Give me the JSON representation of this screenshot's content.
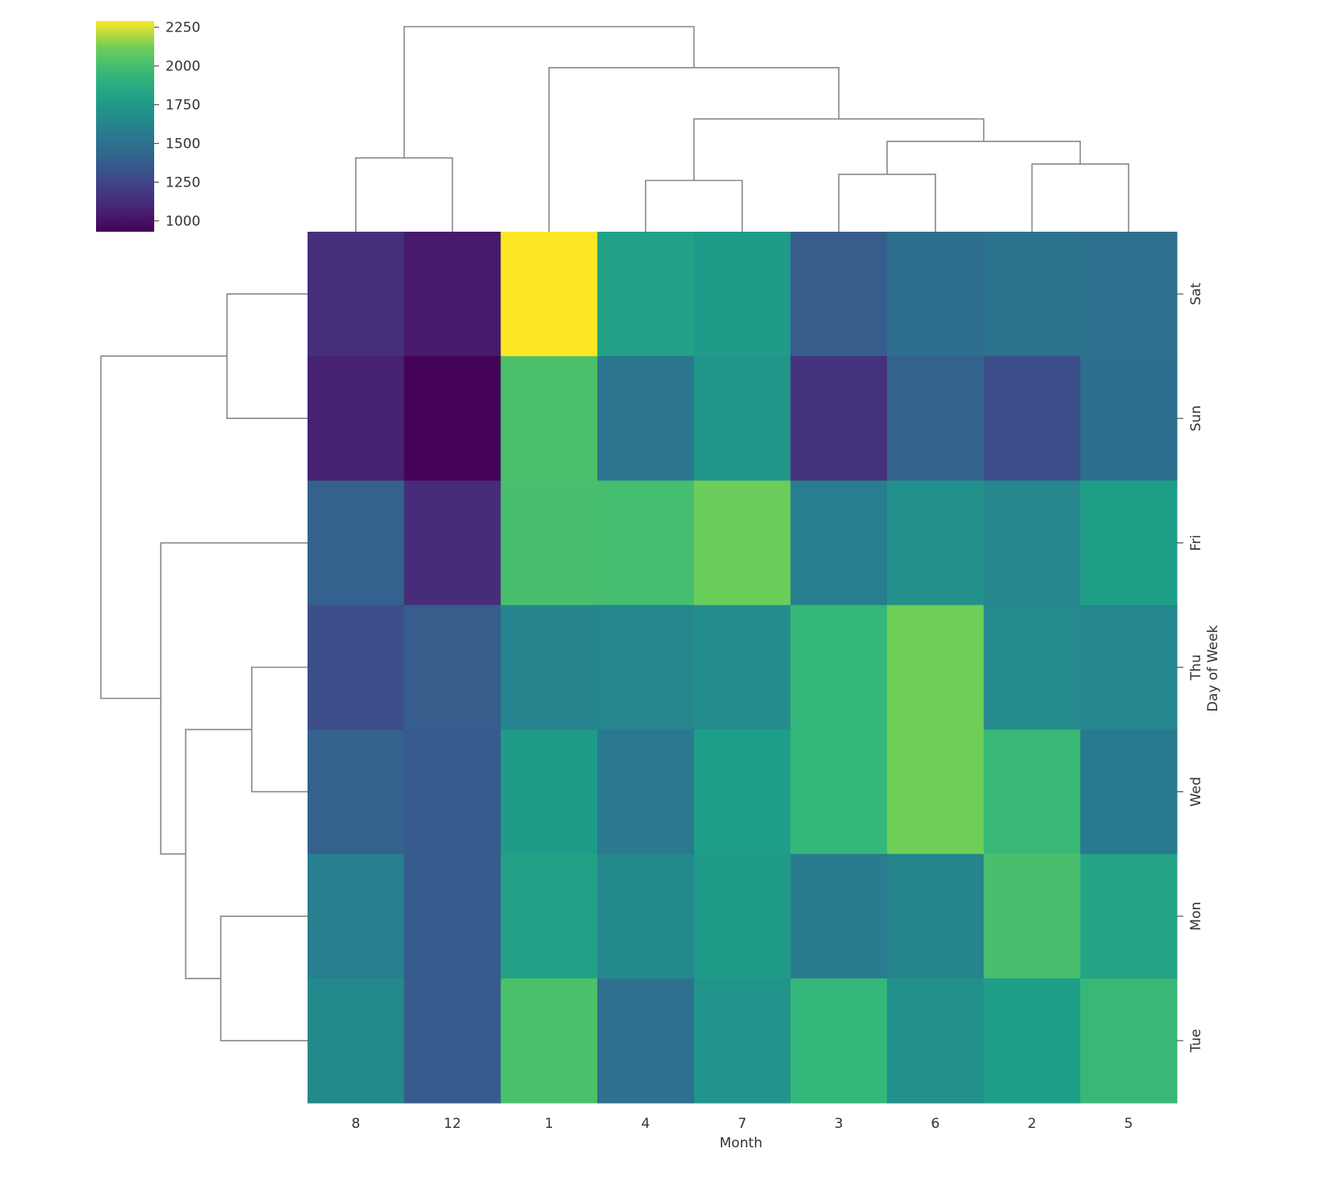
{
  "chart_data": {
    "type": "heatmap",
    "subtype": "clustermap",
    "title": "",
    "xlabel": "Month",
    "ylabel": "Day of Week",
    "x_categories": [
      "8",
      "12",
      "1",
      "4",
      "7",
      "3",
      "6",
      "2",
      "5"
    ],
    "y_categories": [
      "Sat",
      "Sun",
      "Fri",
      "Thu",
      "Wed",
      "Mon",
      "Tue"
    ],
    "values": [
      [
        1140,
        1040,
        2290,
        1800,
        1760,
        1380,
        1480,
        1510,
        1500
      ],
      [
        1070,
        940,
        2020,
        1530,
        1730,
        1150,
        1410,
        1300,
        1480
      ],
      [
        1400,
        1120,
        2010,
        2000,
        2110,
        1580,
        1700,
        1640,
        1790
      ],
      [
        1300,
        1380,
        1620,
        1640,
        1670,
        1950,
        2120,
        1660,
        1640
      ],
      [
        1400,
        1370,
        1770,
        1550,
        1780,
        1950,
        2120,
        1960,
        1560
      ],
      [
        1590,
        1370,
        1800,
        1650,
        1760,
        1570,
        1630,
        2010,
        1820
      ],
      [
        1650,
        1370,
        2020,
        1490,
        1720,
        1950,
        1700,
        1780,
        1960
      ]
    ],
    "colormap": "viridis",
    "color_range": [
      930,
      2290
    ],
    "colorbar_ticks": [
      1000,
      1250,
      1500,
      1750,
      2000,
      2250
    ],
    "colorbar_tick_labels": [
      "1000",
      "1250",
      "1500",
      "1750",
      "2000",
      "2250"
    ],
    "grid": false,
    "legend": "colorbar top-left",
    "column_dendrogram": {
      "merges": [
        {
          "left": "8",
          "right": "12",
          "height": 0.36
        },
        {
          "left": "4",
          "right": "7",
          "height": 0.25
        },
        {
          "left": "3",
          "right": "6",
          "height": 0.28
        },
        {
          "left": "2",
          "right": "5",
          "height": 0.33
        },
        {
          "left": "3,6",
          "right": "2,5",
          "height": 0.44
        },
        {
          "left": "4,7",
          "right": "3,6,2,5",
          "height": 0.55
        },
        {
          "left": "1",
          "right": "4,7,3,6,2,5",
          "height": 0.8
        },
        {
          "left": "8,12",
          "right": "1,4,7,3,6,2,5",
          "height": 1.0
        }
      ]
    },
    "row_dendrogram": {
      "merges": [
        {
          "left": "Sat",
          "right": "Sun",
          "height": 0.39
        },
        {
          "left": "Thu",
          "right": "Wed",
          "height": 0.27
        },
        {
          "left": "Mon",
          "right": "Tue",
          "height": 0.42
        },
        {
          "left": "Thu,Wed",
          "right": "Mon,Tue",
          "height": 0.59
        },
        {
          "left": "Fri",
          "right": "Thu,Wed,Mon,Tue",
          "height": 0.71
        },
        {
          "left": "Sat,Sun",
          "right": "Fri,Thu,Wed,Mon,Tue",
          "height": 1.0
        }
      ]
    }
  }
}
